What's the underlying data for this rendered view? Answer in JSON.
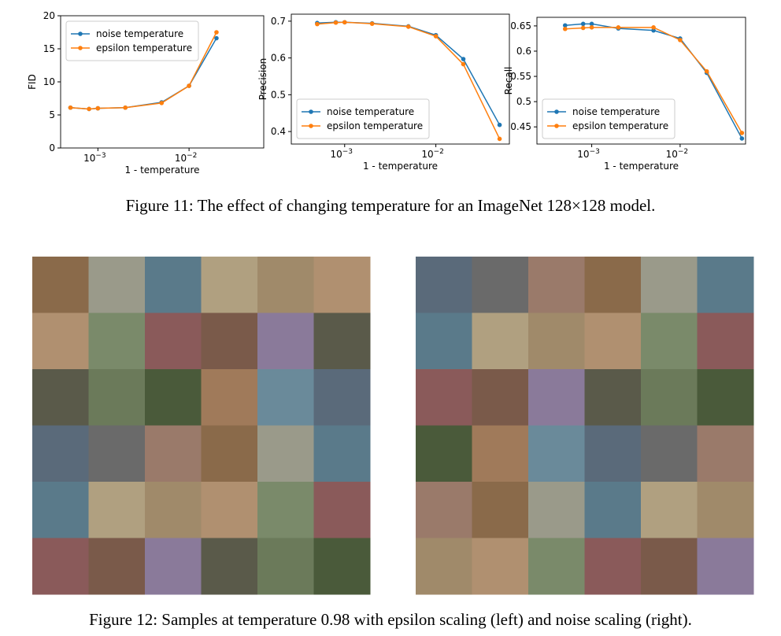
{
  "chart_data": [
    {
      "type": "line",
      "xlabel": "1 - temperature",
      "ylabel": "FID",
      "xscale": "log",
      "legend": "upper left",
      "x": [
        0.0005,
        0.0008,
        0.001,
        0.002,
        0.005,
        0.01,
        0.02
      ],
      "series": [
        {
          "name": "noise temperature",
          "color": "#1f77b4",
          "values": [
            6.1,
            5.9,
            6.0,
            6.1,
            6.9,
            9.4,
            16.6
          ]
        },
        {
          "name": "epsilon temperature",
          "color": "#ff7f0e",
          "values": [
            6.1,
            5.9,
            6.0,
            6.1,
            6.8,
            9.4,
            17.5
          ]
        }
      ],
      "xlim": [
        0.00039,
        0.066
      ],
      "xticks": [
        {
          "value": 0.001,
          "label": "10",
          "exponent": "−3"
        },
        {
          "value": 0.01,
          "label": "10",
          "exponent": "−2"
        }
      ],
      "ylim": [
        0,
        20
      ],
      "yticks": [
        0,
        5,
        10,
        15,
        20
      ]
    },
    {
      "type": "line",
      "xlabel": "1 - temperature",
      "ylabel": "Precision",
      "xscale": "log",
      "legend": "lower left",
      "x": [
        0.0005,
        0.0008,
        0.001,
        0.002,
        0.005,
        0.01,
        0.02,
        0.05
      ],
      "series": [
        {
          "name": "noise temperature",
          "color": "#1f77b4",
          "values": [
            0.695,
            0.697,
            0.697,
            0.694,
            0.686,
            0.662,
            0.597,
            0.418
          ]
        },
        {
          "name": "epsilon temperature",
          "color": "#ff7f0e",
          "values": [
            0.692,
            0.696,
            0.697,
            0.693,
            0.685,
            0.659,
            0.583,
            0.38
          ]
        }
      ],
      "xlim": [
        0.00026,
        0.064
      ],
      "xticks": [
        {
          "value": 0.001,
          "label": "10",
          "exponent": "−3"
        },
        {
          "value": 0.01,
          "label": "10",
          "exponent": "−2"
        }
      ],
      "ylim": [
        0.366,
        0.719
      ],
      "yticks": [
        0.4,
        0.5,
        0.6,
        0.7
      ]
    },
    {
      "type": "line",
      "xlabel": "1 - temperature",
      "ylabel": "Recall",
      "xscale": "log",
      "legend": "lower left",
      "x": [
        0.0005,
        0.0008,
        0.001,
        0.002,
        0.005,
        0.01,
        0.02,
        0.05
      ],
      "series": [
        {
          "name": "noise temperature",
          "color": "#1f77b4",
          "values": [
            0.651,
            0.654,
            0.654,
            0.645,
            0.641,
            0.625,
            0.557,
            0.427
          ]
        },
        {
          "name": "epsilon temperature",
          "color": "#ff7f0e",
          "values": [
            0.644,
            0.646,
            0.647,
            0.647,
            0.647,
            0.622,
            0.56,
            0.438
          ]
        }
      ],
      "xlim": [
        0.00024,
        0.055
      ],
      "xticks": [
        {
          "value": 0.001,
          "label": "10",
          "exponent": "−3"
        },
        {
          "value": 0.01,
          "label": "10",
          "exponent": "−2"
        }
      ],
      "ylim": [
        0.416,
        0.667
      ],
      "yticks": [
        0.45,
        0.5,
        0.55,
        0.6,
        0.65
      ]
    }
  ],
  "captions": [
    "Figure 11: The effect of changing temperature for an ImageNet 128×128 model.",
    "Figure 12: Samples at temperature 0.98 with epsilon scaling (left) and noise scaling (right)."
  ]
}
